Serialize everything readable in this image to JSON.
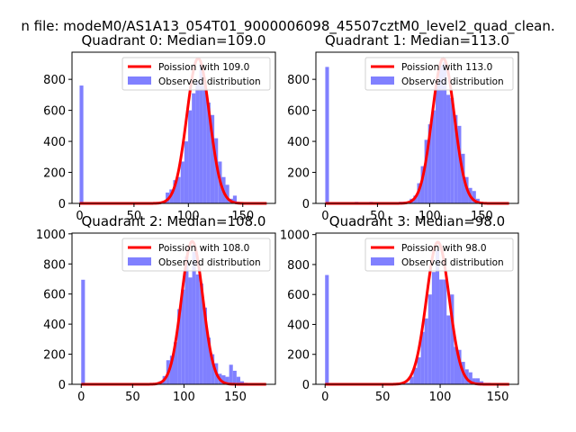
{
  "figure": {
    "suptitle": "n file: modeM0/AS1A13_054T01_9000006098_45507cztM0_level2_quad_clean."
  },
  "colors": {
    "hist": "#8080ff",
    "poisson": "#ff0000",
    "axes": "#000000",
    "background": "#ffffff"
  },
  "chart_data": [
    {
      "type": "bar",
      "title": "Quadrant 0: Median=109.0",
      "xlabel": "",
      "ylabel": "",
      "xlim": [
        -7,
        180
      ],
      "ylim": [
        0,
        975
      ],
      "xticks": [
        0,
        50,
        100,
        150
      ],
      "yticks": [
        0,
        200,
        400,
        600,
        800
      ],
      "grid": false,
      "legend_position": "upper right",
      "series": [
        {
          "name": "Poission with 109.0",
          "kind": "line",
          "mu": 109.0,
          "peak": 935,
          "x_range": [
            0,
            172
          ]
        },
        {
          "name": "Observed distribution",
          "kind": "histogram",
          "bin_width": 3.44,
          "bins": [
            [
              0,
              760
            ],
            [
              72.2,
              5
            ],
            [
              75.7,
              10
            ],
            [
              79.1,
              70
            ],
            [
              82.6,
              90
            ],
            [
              86.0,
              150
            ],
            [
              89.4,
              170
            ],
            [
              92.9,
              270
            ],
            [
              96.3,
              400
            ],
            [
              99.8,
              600
            ],
            [
              103.2,
              710
            ],
            [
              106.6,
              790
            ],
            [
              110.1,
              900
            ],
            [
              113.5,
              760
            ],
            [
              116.9,
              650
            ],
            [
              120.4,
              570
            ],
            [
              123.8,
              420
            ],
            [
              127.3,
              270
            ],
            [
              130.7,
              170
            ],
            [
              134.1,
              120
            ],
            [
              137.6,
              30
            ],
            [
              141.0,
              50
            ],
            [
              144.5,
              10
            ]
          ]
        }
      ]
    },
    {
      "type": "bar",
      "title": "Quadrant 1: Median=113.0",
      "xlabel": "",
      "ylabel": "",
      "xlim": [
        -9,
        185
      ],
      "ylim": [
        0,
        975
      ],
      "xticks": [
        0,
        50,
        100,
        150
      ],
      "yticks": [
        0,
        200,
        400,
        600,
        800
      ],
      "grid": false,
      "legend_position": "upper right",
      "series": [
        {
          "name": "Poission with 113.0",
          "kind": "line",
          "mu": 113.0,
          "peak": 935,
          "x_range": [
            0,
            176
          ]
        },
        {
          "name": "Observed distribution",
          "kind": "histogram",
          "bin_width": 3.52,
          "bins": [
            [
              0,
              880
            ],
            [
              28.2,
              10
            ],
            [
              35.2,
              5
            ],
            [
              42.2,
              10
            ],
            [
              56.3,
              5
            ],
            [
              63.4,
              5
            ],
            [
              70.4,
              10
            ],
            [
              73.9,
              10
            ],
            [
              77.4,
              10
            ],
            [
              80.9,
              30
            ],
            [
              84.4,
              50
            ],
            [
              88.0,
              130
            ],
            [
              91.5,
              240
            ],
            [
              95.0,
              410
            ],
            [
              98.5,
              510
            ],
            [
              102.0,
              600
            ],
            [
              105.6,
              780
            ],
            [
              109.1,
              890
            ],
            [
              112.6,
              910
            ],
            [
              116.1,
              700
            ],
            [
              119.6,
              680
            ],
            [
              123.2,
              570
            ],
            [
              126.7,
              500
            ],
            [
              130.2,
              320
            ],
            [
              133.7,
              170
            ],
            [
              137.2,
              100
            ],
            [
              140.8,
              80
            ],
            [
              144.3,
              30
            ],
            [
              147.8,
              10
            ]
          ]
        }
      ]
    },
    {
      "type": "bar",
      "title": "Quadrant 2: Median=108.0",
      "xlabel": "",
      "ylabel": "",
      "xlim": [
        -9,
        189
      ],
      "ylim": [
        0,
        1005
      ],
      "xticks": [
        0,
        50,
        100,
        150
      ],
      "yticks": [
        0,
        200,
        400,
        600,
        800,
        1000
      ],
      "grid": false,
      "legend_position": "upper right",
      "series": [
        {
          "name": "Poission with 108.0",
          "kind": "line",
          "mu": 108.0,
          "peak": 950,
          "x_range": [
            0,
            180
          ]
        },
        {
          "name": "Observed distribution",
          "kind": "histogram",
          "bin_width": 3.6,
          "bins": [
            [
              0,
              695
            ],
            [
              64.8,
              5
            ],
            [
              68.4,
              5
            ],
            [
              72.0,
              10
            ],
            [
              75.6,
              20
            ],
            [
              79.2,
              55
            ],
            [
              82.8,
              160
            ],
            [
              86.4,
              190
            ],
            [
              90.0,
              280
            ],
            [
              93.6,
              500
            ],
            [
              97.2,
              630
            ],
            [
              100.8,
              850
            ],
            [
              104.4,
              710
            ],
            [
              108.0,
              880
            ],
            [
              111.6,
              730
            ],
            [
              115.2,
              670
            ],
            [
              118.8,
              510
            ],
            [
              122.4,
              310
            ],
            [
              126.0,
              200
            ],
            [
              129.6,
              140
            ],
            [
              133.2,
              70
            ],
            [
              136.8,
              60
            ],
            [
              140.4,
              50
            ],
            [
              144.0,
              130
            ],
            [
              147.6,
              90
            ],
            [
              151.2,
              50
            ],
            [
              154.8,
              20
            ],
            [
              158.4,
              10
            ]
          ]
        }
      ]
    },
    {
      "type": "bar",
      "title": "Quadrant 3: Median=98.0",
      "xlabel": "",
      "ylabel": "",
      "xlim": [
        -8,
        168
      ],
      "ylim": [
        0,
        1010
      ],
      "xticks": [
        0,
        50,
        100,
        150
      ],
      "yticks": [
        0,
        200,
        400,
        600,
        800,
        1000
      ],
      "grid": false,
      "legend_position": "upper right",
      "series": [
        {
          "name": "Poission with 98.0",
          "kind": "line",
          "mu": 98.0,
          "peak": 950,
          "x_range": [
            0,
            160
          ]
        },
        {
          "name": "Observed distribution",
          "kind": "histogram",
          "bin_width": 3.2,
          "bins": [
            [
              0,
              730
            ],
            [
              64.0,
              5
            ],
            [
              67.2,
              5
            ],
            [
              70.4,
              10
            ],
            [
              73.6,
              50
            ],
            [
              76.8,
              110
            ],
            [
              80.0,
              180
            ],
            [
              83.2,
              350
            ],
            [
              86.4,
              440
            ],
            [
              89.6,
              600
            ],
            [
              92.8,
              750
            ],
            [
              96.0,
              900
            ],
            [
              99.2,
              700
            ],
            [
              102.4,
              700
            ],
            [
              105.6,
              460
            ],
            [
              108.8,
              600
            ],
            [
              112.0,
              250
            ],
            [
              115.2,
              230
            ],
            [
              118.4,
              150
            ],
            [
              121.6,
              100
            ],
            [
              124.8,
              80
            ],
            [
              128.0,
              40
            ],
            [
              131.2,
              40
            ],
            [
              134.4,
              20
            ],
            [
              137.6,
              10
            ],
            [
              140.8,
              10
            ]
          ]
        }
      ]
    }
  ]
}
